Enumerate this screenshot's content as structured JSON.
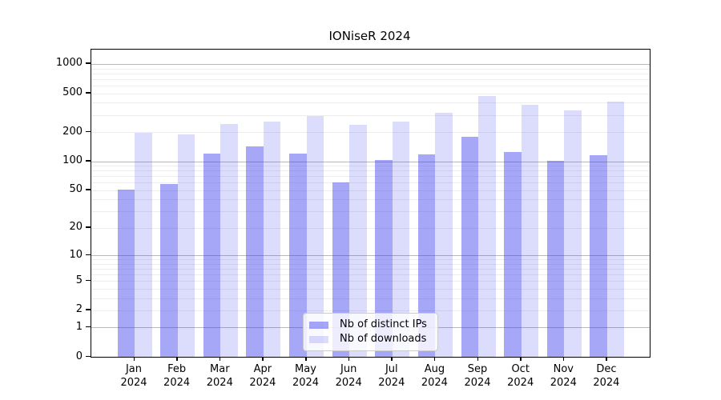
{
  "window": {
    "kind": "static-matplotlib-chart"
  },
  "chart_data": {
    "type": "bar",
    "title": "IONiseR 2024",
    "months": [
      "Jan",
      "Feb",
      "Mar",
      "Apr",
      "May",
      "Jun",
      "Jul",
      "Aug",
      "Sep",
      "Oct",
      "Nov",
      "Dec"
    ],
    "year": "2024",
    "categories": [
      "Jan 2024",
      "Feb 2024",
      "Mar 2024",
      "Apr 2024",
      "May 2024",
      "Jun 2024",
      "Jul 2024",
      "Aug 2024",
      "Sep 2024",
      "Oct 2024",
      "Nov 2024",
      "Dec 2024"
    ],
    "series": [
      {
        "name": "Nb of distinct IPs",
        "color": "rgba(60,60,240,0.45)",
        "values": [
          51,
          58,
          120,
          143,
          120,
          60,
          102,
          118,
          178,
          124,
          101,
          116
        ]
      },
      {
        "name": "Nb of downloads",
        "color": "rgba(60,60,240,0.18)",
        "values": [
          198,
          188,
          243,
          256,
          290,
          238,
          256,
          317,
          468,
          382,
          334,
          411
        ]
      }
    ],
    "xlabel": "",
    "ylabel": "",
    "yscale": "log1p",
    "yticks": [
      0,
      1,
      2,
      5,
      10,
      20,
      50,
      100,
      200,
      500,
      1000
    ],
    "ylim": [
      0,
      1400
    ],
    "grid": true,
    "legend_position": "lower center",
    "colors": {
      "bar_distinct_ips": "rgba(60,60,240,0.45)",
      "bar_downloads": "rgba(60,60,240,0.18)",
      "grid_major": "#b9b9b9",
      "grid_minor": "#ededed",
      "spine": "#000000",
      "legend_border": "#cccccc"
    }
  }
}
